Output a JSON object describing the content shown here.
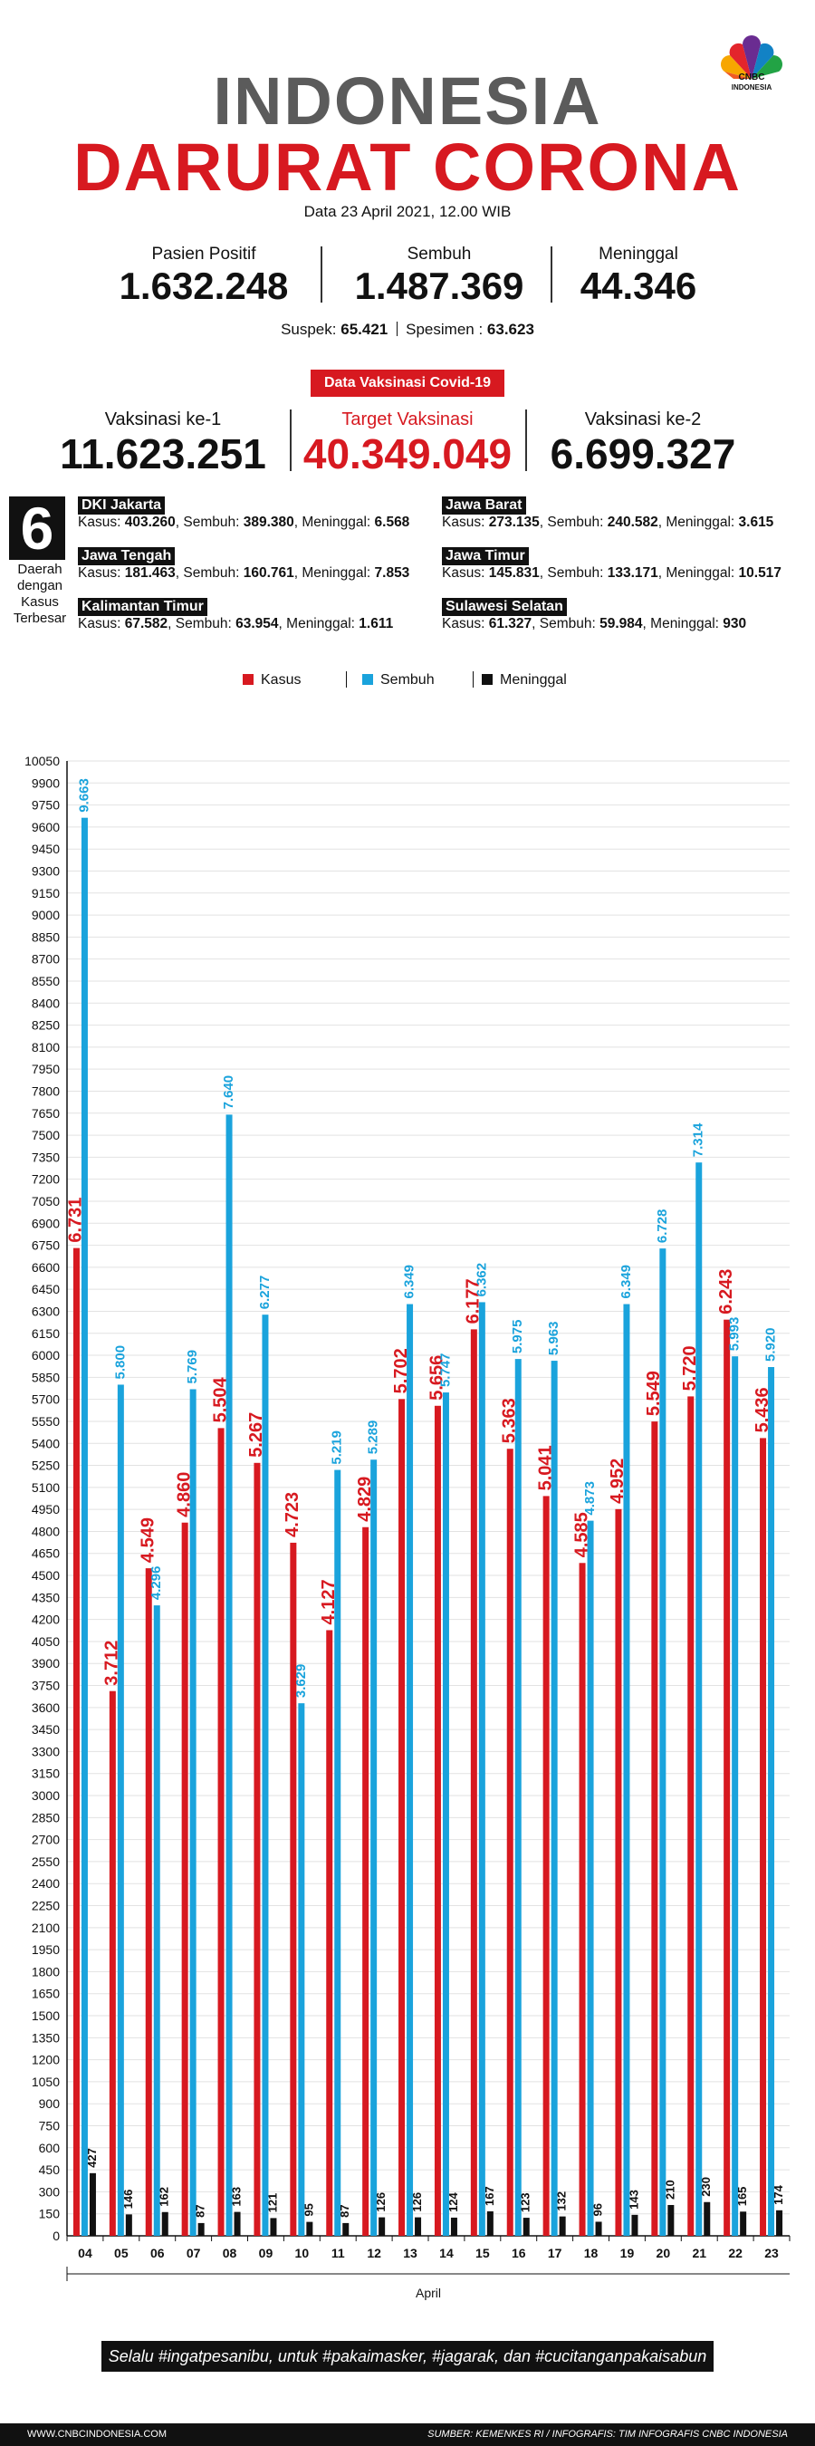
{
  "header": {
    "logo_text": "CNBC\nINDONESIA",
    "title_line1": "INDONESIA",
    "title_line2": "DARURAT CORONA",
    "date": "Data 23 April 2021, 12.00 WIB"
  },
  "stats": [
    {
      "label": "Pasien Positif",
      "value": "1.632.248"
    },
    {
      "label": "Sembuh",
      "value": "1.487.369"
    },
    {
      "label": "Meninggal",
      "value": "44.346"
    }
  ],
  "sub_stats": {
    "suspek_label": "Suspek:",
    "suspek_value": "65.421",
    "spesimen_label": "Spesimen :",
    "spesimen_value": "63.623"
  },
  "vaccination": {
    "banner": "Data Vaksinasi Covid-19",
    "items": [
      {
        "label": "Vaksinasi ke-1",
        "value": "11.623.251"
      },
      {
        "label": "Target Vaksinasi",
        "value": "40.349.049"
      },
      {
        "label": "Vaksinasi ke-2",
        "value": "6.699.327"
      }
    ]
  },
  "regions": {
    "count": "6",
    "caption": "Daerah dengan Kasus Terbesar",
    "items": [
      {
        "name": "DKI Jakarta",
        "kasus": "403.260",
        "sembuh": "389.380",
        "meninggal": "6.568"
      },
      {
        "name": "Jawa Barat",
        "kasus": "273.135",
        "sembuh": "240.582",
        "meninggal": "3.615"
      },
      {
        "name": "Jawa Tengah",
        "kasus": "181.463",
        "sembuh": "160.761",
        "meninggal": "7.853"
      },
      {
        "name": "Jawa Timur",
        "kasus": "145.831",
        "sembuh": "133.171",
        "meninggal": "10.517"
      },
      {
        "name": "Kalimantan Timur",
        "kasus": "67.582",
        "sembuh": "63.954",
        "meninggal": "1.611"
      },
      {
        "name": "Sulawesi Selatan",
        "kasus": "61.327",
        "sembuh": "59.984",
        "meninggal": "930"
      }
    ],
    "labels": {
      "kasus": "Kasus:",
      "sembuh": "Sembuh:",
      "meninggal": "Meninggal:"
    }
  },
  "chart_data": {
    "type": "bar",
    "categories": [
      "04",
      "05",
      "06",
      "07",
      "08",
      "09",
      "10",
      "11",
      "12",
      "13",
      "14",
      "15",
      "16",
      "17",
      "18",
      "19",
      "20",
      "21",
      "22",
      "23"
    ],
    "series": [
      {
        "name": "Kasus",
        "color": "#d71920",
        "values": [
          6731,
          3712,
          4549,
          4860,
          5504,
          5267,
          4723,
          4127,
          4829,
          5702,
          5656,
          6177,
          5363,
          5041,
          4585,
          4952,
          5549,
          5720,
          6243,
          5436
        ],
        "labels": [
          "6.731",
          "3.712",
          "4.549",
          "4.860",
          "5.504",
          "5.267",
          "4.723",
          "4.127",
          "4.829",
          "5.702",
          "5.656",
          "6.177",
          "5.363",
          "5.041",
          "4.585",
          "4.952",
          "5.549",
          "5.720",
          "6.243",
          "5.436"
        ]
      },
      {
        "name": "Sembuh",
        "color": "#1aa3dc",
        "values": [
          9663,
          5800,
          4296,
          5769,
          7640,
          6277,
          3629,
          5219,
          5289,
          6349,
          5747,
          6362,
          5975,
          5963,
          4873,
          6349,
          6728,
          7314,
          5993,
          5920
        ],
        "labels": [
          "9.663",
          "5.800",
          "4.296",
          "5.769",
          "7.640",
          "6.277",
          "3.629",
          "5.219",
          "5.289",
          "6.349",
          "5.747",
          "6.362",
          "5.975",
          "5.963",
          "4.873",
          "6.349",
          "6.728",
          "7.314",
          "5.993",
          "5.920"
        ]
      },
      {
        "name": "Meninggal",
        "color": "#111111",
        "values": [
          427,
          146,
          162,
          87,
          163,
          121,
          95,
          87,
          126,
          126,
          124,
          167,
          123,
          132,
          96,
          143,
          210,
          230,
          165,
          174
        ],
        "labels": [
          "427",
          "146",
          "162",
          "87",
          "163",
          "121",
          "95",
          "87",
          "126",
          "126",
          "124",
          "167",
          "123",
          "132",
          "96",
          "143",
          "210",
          "230",
          "165",
          "174"
        ]
      }
    ],
    "xlabel": "April",
    "ylabel": "",
    "ylim": [
      0,
      10050
    ],
    "ytick_step": 150,
    "grid": true,
    "legend_position": "top-center"
  },
  "tagline": "Selalu #ingatpesanibu, untuk #pakaimasker, #jagarak, dan #cucitanganpakaisabun",
  "footer": {
    "left": "WWW.CNBCINDONESIA.COM",
    "right": "SUMBER: KEMENKES RI / INFOGRAFIS: TIM INFOGRAFIS CNBC INDONESIA"
  }
}
